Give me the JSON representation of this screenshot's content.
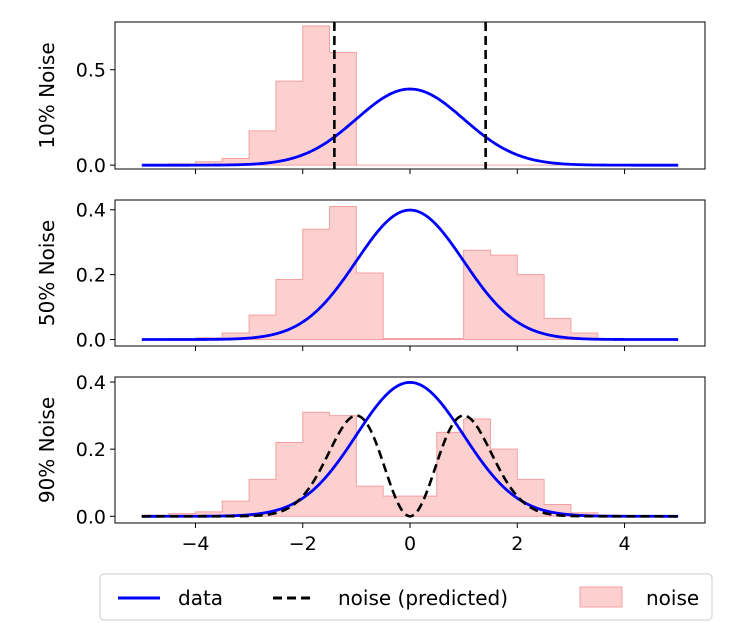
{
  "chart_data": [
    {
      "type": "line",
      "ylabel": "10% Noise",
      "xlim": [
        -5.5,
        5.5
      ],
      "ylim": [
        -0.02,
        0.75
      ],
      "yticks": [
        0.0,
        0.5
      ],
      "ytick_labels": [
        "0.0",
        "0.5"
      ],
      "xticks": [
        -4,
        -2,
        0,
        2,
        4
      ],
      "xtick_labels": [],
      "series": [
        {
          "name": "data",
          "kind": "gaussian",
          "mean": 0,
          "std": 1,
          "x_range": [
            -5,
            5
          ],
          "color": "#0000ff"
        }
      ],
      "noise_hist": {
        "edges": [
          -5.0,
          -4.5,
          -4.0,
          -3.5,
          -3.0,
          -2.5,
          -2.0,
          -1.5,
          -1.0,
          5.0
        ],
        "values": [
          0.0,
          0.007,
          0.018,
          0.035,
          0.18,
          0.44,
          0.73,
          0.59,
          0.0
        ],
        "fill": "#fdd0d0",
        "edge": "#f5a0a0"
      },
      "vlines": [
        -1.41,
        1.41
      ]
    },
    {
      "type": "line",
      "ylabel": "50% Noise",
      "xlim": [
        -5.5,
        5.5
      ],
      "ylim": [
        -0.02,
        0.43
      ],
      "yticks": [
        0.0,
        0.2,
        0.4
      ],
      "ytick_labels": [
        "0.0",
        "0.2",
        "0.4"
      ],
      "xticks": [
        -4,
        -2,
        0,
        2,
        4
      ],
      "xtick_labels": [],
      "series": [
        {
          "name": "data",
          "kind": "gaussian",
          "mean": 0,
          "std": 1,
          "x_range": [
            -5,
            5
          ],
          "color": "#0000ff"
        }
      ],
      "noise_hist": {
        "edges": [
          -5.0,
          -4.5,
          -4.0,
          -3.5,
          -3.0,
          -2.5,
          -2.0,
          -1.5,
          -1.0,
          -0.5,
          0.0,
          0.5,
          1.0,
          1.5,
          2.0,
          2.5,
          3.0,
          3.5,
          4.0,
          4.5,
          5.0
        ],
        "values": [
          0.0,
          0.003,
          0.005,
          0.02,
          0.075,
          0.185,
          0.34,
          0.41,
          0.205,
          0.003,
          0.003,
          0.003,
          0.275,
          0.26,
          0.2,
          0.065,
          0.02,
          0.003,
          0.0,
          0.0
        ],
        "fill": "#fdd0d0",
        "edge": "#f5a0a0"
      },
      "vlines": []
    },
    {
      "type": "line",
      "ylabel": "90% Noise",
      "xlim": [
        -5.5,
        5.5
      ],
      "ylim": [
        -0.02,
        0.415
      ],
      "yticks": [
        0.0,
        0.2,
        0.4
      ],
      "ytick_labels": [
        "0.0",
        "0.2",
        "0.4"
      ],
      "xticks": [
        -4,
        -2,
        0,
        2,
        4
      ],
      "xtick_labels": [
        "−4",
        "−2",
        "0",
        "2",
        "4"
      ],
      "series": [
        {
          "name": "data",
          "kind": "gaussian",
          "mean": 0,
          "std": 1,
          "x_range": [
            -5,
            5
          ],
          "color": "#0000ff"
        },
        {
          "name": "noise (predicted)",
          "kind": "noise_pred",
          "x_range": [
            -5,
            5
          ],
          "color": "#000000",
          "dashed": true
        }
      ],
      "noise_hist": {
        "edges": [
          -5.0,
          -4.5,
          -4.0,
          -3.5,
          -3.0,
          -2.5,
          -2.0,
          -1.5,
          -1.0,
          -0.5,
          0.0,
          0.5,
          1.0,
          1.5,
          2.0,
          2.5,
          3.0,
          3.5,
          4.0,
          4.5,
          5.0
        ],
        "values": [
          0.003,
          0.008,
          0.013,
          0.045,
          0.11,
          0.22,
          0.31,
          0.3,
          0.09,
          0.06,
          0.06,
          0.25,
          0.29,
          0.2,
          0.11,
          0.035,
          0.01,
          0.003,
          0.0,
          0.0
        ],
        "fill": "#fdd0d0",
        "edge": "#f5a0a0"
      },
      "vlines": []
    }
  ],
  "legend": {
    "position": "bottom",
    "items": [
      {
        "label": "data",
        "type": "line",
        "color": "#0000ff"
      },
      {
        "label": "noise (predicted)",
        "type": "dashed",
        "color": "#000000"
      },
      {
        "label": "noise",
        "type": "patch",
        "color": "#fdd0d0",
        "edge": "#f5a0a0"
      }
    ]
  }
}
